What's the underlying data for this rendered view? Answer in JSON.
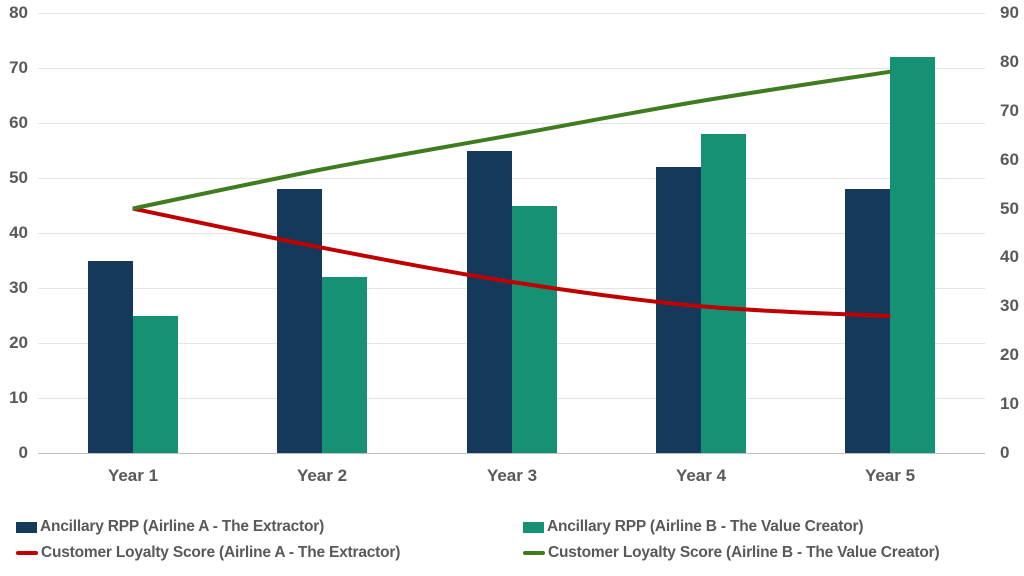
{
  "chart_data": {
    "type": "combo-bar-line",
    "categories": [
      "Year 1",
      "Year 2",
      "Year 3",
      "Year 4",
      "Year 5"
    ],
    "series": [
      {
        "key": "bar-airline-a",
        "name": "Ancillary RPP (Airline A - The Extractor)",
        "chart": "bar",
        "axis": "left",
        "color": "#15395B",
        "values": [
          35,
          48,
          55,
          52,
          48
        ]
      },
      {
        "key": "bar-airline-b",
        "name": "Ancillary RPP (Airline B - The Value Creator)",
        "chart": "bar",
        "axis": "left",
        "color": "#179174",
        "values": [
          25,
          32,
          45,
          58,
          72
        ]
      },
      {
        "key": "line-airline-a",
        "name": "Customer Loyalty Score (Airline A - The Extractor)",
        "chart": "line",
        "axis": "right",
        "color": "#C00000",
        "values": [
          50,
          42,
          35,
          30,
          28
        ]
      },
      {
        "key": "line-airline-b",
        "name": "Customer Loyalty Score (Airline B - The Value Creator)",
        "chart": "line",
        "axis": "right",
        "color": "#3E7C1F",
        "values": [
          50,
          58,
          65,
          72,
          78
        ]
      }
    ],
    "left_axis": {
      "min": 0,
      "max": 80,
      "step": 10,
      "tick_labels": [
        "0",
        "10",
        "20",
        "30",
        "40",
        "50",
        "60",
        "70",
        "80"
      ]
    },
    "right_axis": {
      "min": 0,
      "max": 90,
      "step": 10,
      "tick_labels": [
        "0",
        "10",
        "20",
        "30",
        "40",
        "50",
        "60",
        "70",
        "80",
        "90"
      ]
    },
    "grid": true,
    "legend_position": "bottom",
    "title": ""
  },
  "colors": {
    "background": "#FFFFFF",
    "text": "#595959",
    "gridline": "#E4E4E4",
    "axis_line": "#BFBFBF"
  }
}
